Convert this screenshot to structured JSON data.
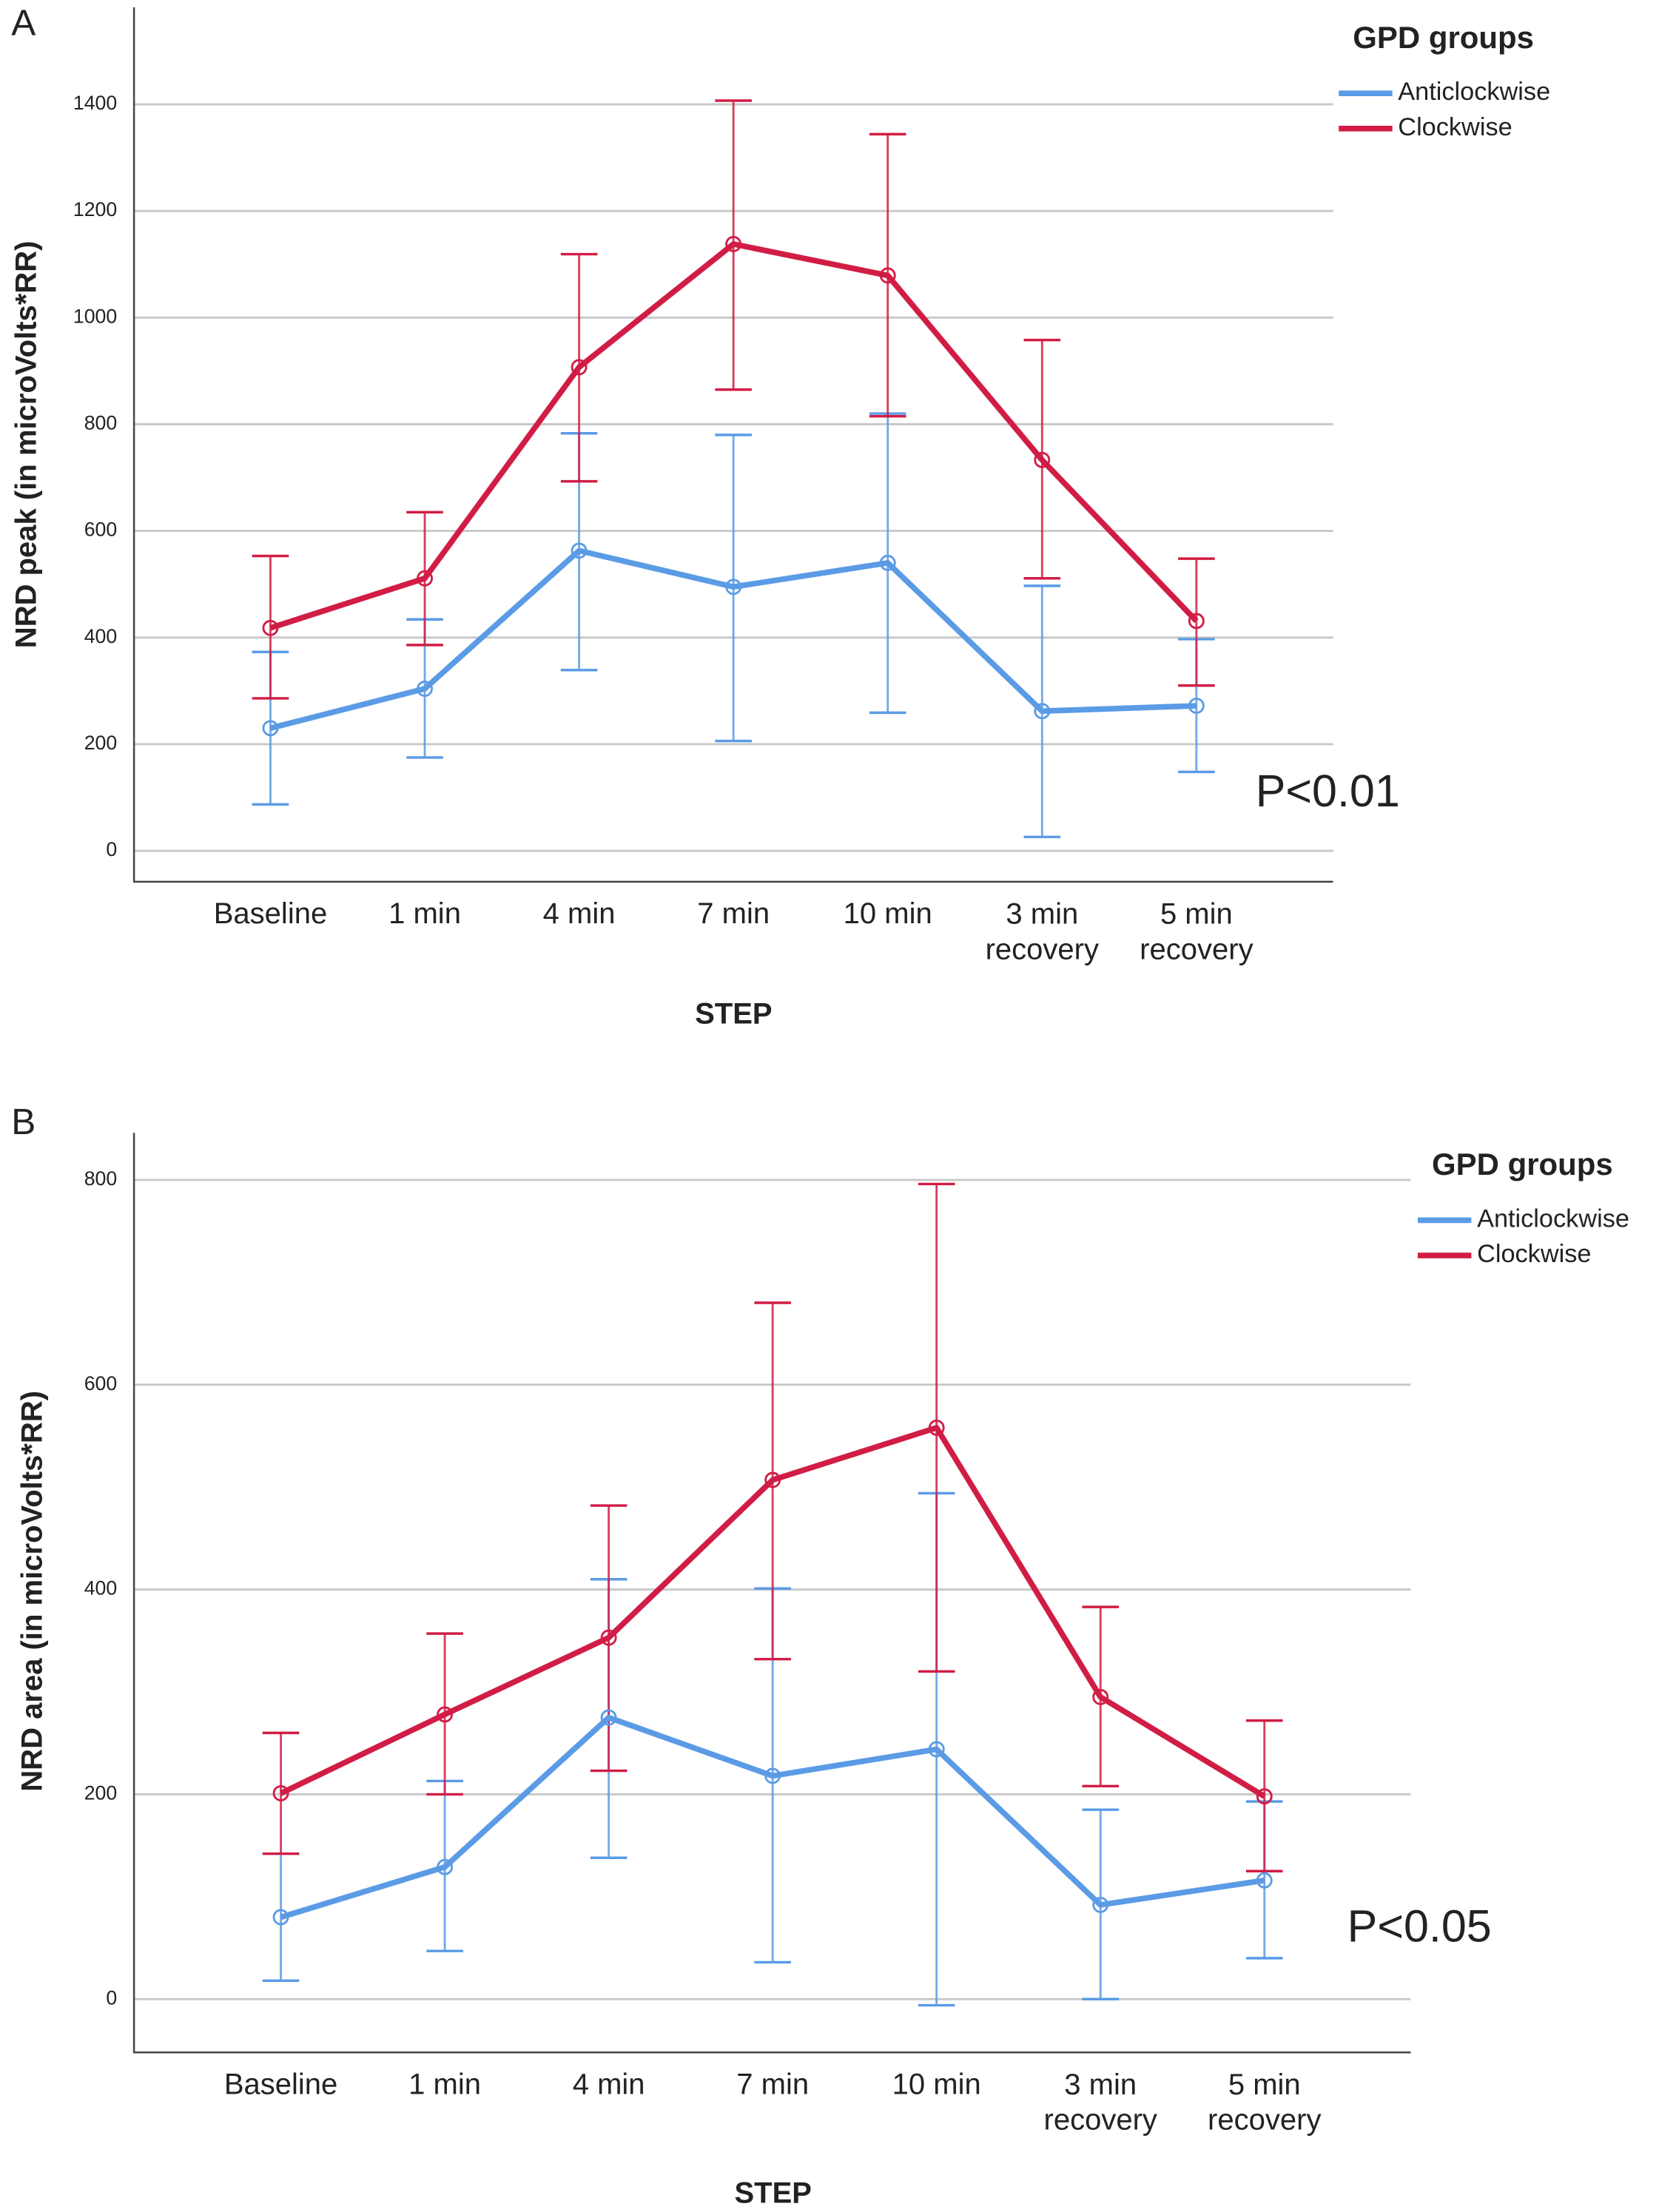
{
  "chart_data": [
    {
      "type": "line",
      "panel_label": "A",
      "ylabel": "NRD peak (in microVolts*RR)",
      "xlabel": "STEP",
      "legend_title": "GPD groups",
      "annotation": "P<0.01",
      "grid": true,
      "categories": [
        "Baseline",
        "1 min",
        "4 min",
        "7 min",
        "10 min",
        "3 min recovery",
        "5 min recovery"
      ],
      "ylim": [
        -58,
        1582
      ],
      "yticks": [
        0,
        200,
        400,
        600,
        800,
        1000,
        1200,
        1400
      ],
      "series": [
        {
          "name": "Anticlockwise",
          "color": "#5b9be6",
          "values": [
            230,
            304,
            563,
            495,
            540,
            262,
            272
          ],
          "lower": [
            87,
            175,
            339,
            206,
            259,
            26,
            148
          ],
          "upper": [
            373,
            434,
            783,
            780,
            820,
            497,
            397
          ]
        },
        {
          "name": "Clockwise",
          "color": "#d11d45",
          "values": [
            418,
            511,
            907,
            1138,
            1079,
            733,
            431
          ],
          "lower": [
            286,
            386,
            693,
            865,
            815,
            511,
            310
          ],
          "upper": [
            553,
            635,
            1119,
            1407,
            1344,
            958,
            548
          ]
        }
      ]
    },
    {
      "type": "line",
      "panel_label": "B",
      "ylabel": "NRD area (in microVolts*RR)",
      "xlabel": "STEP",
      "legend_title": "GPD groups",
      "annotation": "P<0.05",
      "grid": true,
      "categories": [
        "Baseline",
        "1 min",
        "4 min",
        "7 min",
        "10 min",
        "3 min recovery",
        "5 min recovery"
      ],
      "ylim": [
        -52,
        846
      ],
      "yticks": [
        0,
        200,
        400,
        600,
        800
      ],
      "series": [
        {
          "name": "Anticlockwise",
          "color": "#5b9be6",
          "values": [
            80,
            129,
            275,
            218,
            244,
            92,
            116
          ],
          "lower": [
            18,
            47,
            138,
            36,
            -6,
            0,
            40
          ],
          "upper": [
            142,
            213,
            410,
            401,
            494,
            185,
            193
          ]
        },
        {
          "name": "Clockwise",
          "color": "#d11d45",
          "values": [
            201,
            278,
            353,
            507,
            558,
            295,
            198
          ],
          "lower": [
            142,
            200,
            223,
            332,
            320,
            208,
            125
          ],
          "upper": [
            260,
            357,
            482,
            680,
            796,
            383,
            272
          ]
        }
      ]
    }
  ]
}
